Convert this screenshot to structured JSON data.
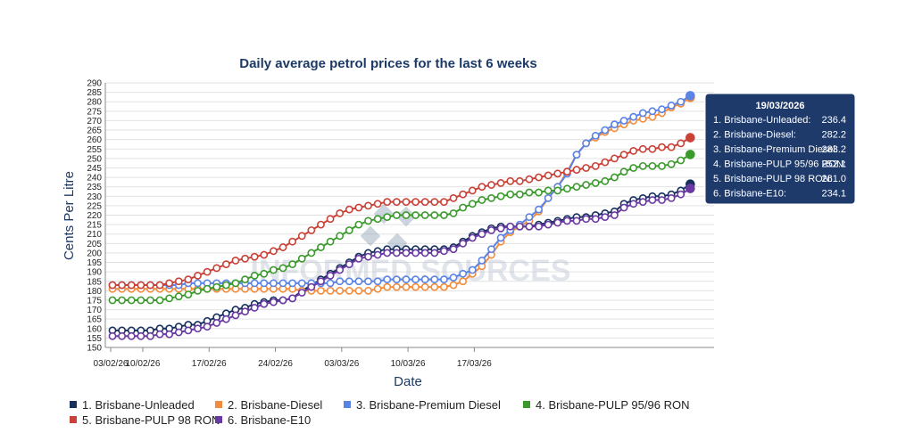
{
  "chart_data": {
    "type": "line",
    "title": "Daily average petrol prices for the last 6 weeks",
    "xlabel": "Date",
    "ylabel": "Cents Per Litre",
    "ylim": [
      150,
      290
    ],
    "ytick_step": 5,
    "x_start_label": "03/02/26",
    "x_tick_labels": [
      "03/02/26",
      "10/02/26",
      "17/02/26",
      "24/02/26",
      "03/03/26",
      "10/03/26",
      "17/03/26"
    ],
    "grid": true,
    "legend_position": "bottom-left",
    "watermark": "INFORMED SOURCES",
    "series": [
      {
        "name": "1. Brisbane-Unleaded",
        "color": "#17305e",
        "values": [
          159,
          159,
          159,
          159,
          159,
          160,
          160,
          161,
          162,
          162,
          164,
          166,
          168,
          170,
          171,
          173,
          174,
          175,
          175,
          176,
          180,
          183,
          186,
          189,
          192,
          195,
          198,
          200,
          201,
          202,
          202,
          202,
          202,
          202,
          202,
          202,
          203,
          206,
          209,
          211,
          213,
          214,
          214,
          214,
          214,
          215,
          216,
          217,
          218,
          219,
          219,
          220,
          221,
          222,
          226,
          228,
          229,
          230,
          230,
          231,
          233,
          236.4
        ]
      },
      {
        "name": "2. Brisbane-Diesel",
        "color": "#f28c3c",
        "values": [
          181,
          181,
          181,
          181,
          181,
          181,
          181,
          181,
          181,
          181,
          181,
          181,
          181,
          181,
          181,
          181,
          181,
          181,
          181,
          181,
          180,
          180,
          180,
          180,
          180,
          180,
          180,
          180,
          181,
          182,
          182,
          182,
          182,
          182,
          182,
          182,
          183,
          185,
          189,
          193,
          199,
          206,
          211,
          214,
          217,
          222,
          229,
          235,
          243,
          252,
          258,
          261,
          264,
          266,
          268,
          270,
          271,
          272,
          274,
          277,
          279,
          282.2
        ]
      },
      {
        "name": "3. Brisbane-Premium Diesel",
        "color": "#5a83e6",
        "values": [
          183,
          183,
          183,
          183,
          183,
          183,
          183,
          183,
          184,
          184,
          184,
          184,
          184,
          184,
          184,
          184,
          184,
          184,
          184,
          184,
          184,
          184,
          184,
          184,
          185,
          185,
          185,
          185,
          185,
          186,
          186,
          186,
          186,
          186,
          186,
          186,
          187,
          189,
          191,
          196,
          202,
          208,
          212,
          215,
          219,
          223,
          229,
          235,
          242,
          252,
          258,
          262,
          265,
          268,
          270,
          272,
          274,
          275,
          276,
          278,
          280,
          283.2
        ]
      },
      {
        "name": "4. Brisbane-PULP 95/96 RON",
        "color": "#3b9a2c",
        "values": [
          175,
          175,
          175,
          175,
          175,
          175,
          176,
          177,
          178,
          180,
          181,
          182,
          183,
          184,
          186,
          188,
          189,
          191,
          192,
          194,
          197,
          200,
          203,
          206,
          209,
          212,
          215,
          217,
          218,
          219,
          220,
          220,
          220,
          220,
          220,
          220,
          221,
          224,
          226,
          228,
          229,
          230,
          231,
          231,
          232,
          232,
          233,
          233,
          234,
          235,
          236,
          237,
          238,
          240,
          243,
          245,
          246,
          246,
          246,
          247,
          249,
          252.1
        ]
      },
      {
        "name": "5. Brisbane-PULP 98 RON",
        "color": "#c94137",
        "values": [
          183,
          183,
          183,
          183,
          183,
          183,
          184,
          185,
          186,
          188,
          190,
          192,
          194,
          196,
          197,
          198,
          199,
          201,
          203,
          206,
          209,
          212,
          215,
          218,
          221,
          223,
          224,
          225,
          226,
          227,
          227,
          227,
          227,
          227,
          227,
          227,
          229,
          231,
          233,
          235,
          236,
          237,
          238,
          238,
          239,
          240,
          241,
          242,
          243,
          244,
          245,
          246,
          248,
          250,
          252,
          254,
          255,
          255,
          256,
          256,
          258,
          261.0
        ]
      },
      {
        "name": "6. Brisbane-E10",
        "color": "#6a3aa2",
        "values": [
          156,
          156,
          156,
          156,
          156,
          157,
          157,
          158,
          159,
          160,
          161,
          163,
          165,
          167,
          169,
          171,
          173,
          174,
          175,
          176,
          179,
          182,
          185,
          188,
          191,
          194,
          197,
          198,
          199,
          200,
          200,
          200,
          200,
          200,
          200,
          201,
          202,
          205,
          208,
          210,
          212,
          213,
          214,
          214,
          214,
          214,
          215,
          216,
          217,
          217,
          218,
          218,
          219,
          220,
          224,
          226,
          227,
          228,
          228,
          229,
          231,
          234.1
        ]
      }
    ]
  },
  "tooltip": {
    "date": "19/03/2026",
    "rows": [
      {
        "label": "1. Brisbane-Unleaded:",
        "value": "236.4"
      },
      {
        "label": "2. Brisbane-Diesel:",
        "value": "282.2"
      },
      {
        "label": "3. Brisbane-Premium Diesel:",
        "value": "283.2"
      },
      {
        "label": "4. Brisbane-PULP 95/96 RON:",
        "value": "252.1"
      },
      {
        "label": "5. Brisbane-PULP 98 RON:",
        "value": "261.0"
      },
      {
        "label": "6. Brisbane-E10:",
        "value": "234.1"
      }
    ],
    "background": "#1e3a6b",
    "border": "#ffffff"
  }
}
